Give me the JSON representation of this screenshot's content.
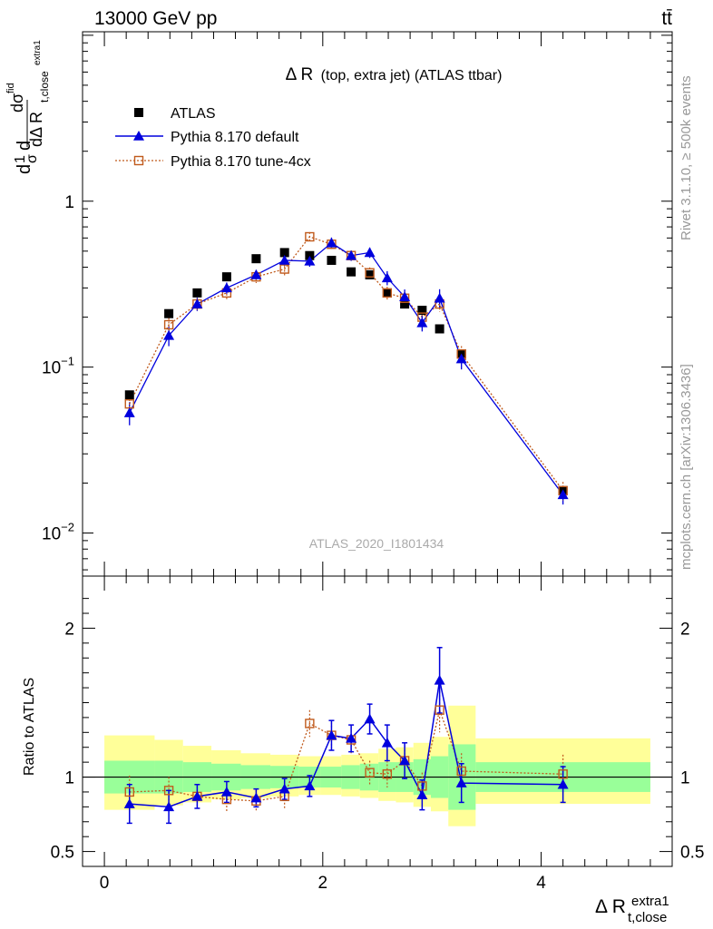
{
  "header": {
    "energy_label": "13000 GeV pp",
    "process_label": "tt̄"
  },
  "side_labels": {
    "rivet": "Rivet 3.1.10, ≥ 500k events",
    "mcplots": "mcplots.cern.ch [arXiv:1306.3436]"
  },
  "colors": {
    "data": "#000000",
    "default": "#0000dd",
    "tune": "#c05a1c",
    "band_inner": "#99ff99",
    "band_outer": "#ffff99"
  },
  "chart_data": [
    {
      "type": "scatter",
      "title_main": "Δ R",
      "title_rest": "(top, extra jet) (ATLAS ttbar)",
      "ylabel": "dσ/dΔ R_{t,close}^{extra1} · 1/σ^{fid}",
      "ylabel_parts": [
        "d",
        "1",
        "σ",
        "d",
        "dσ",
        "fid",
        "dΔ R",
        "t,close",
        "extra1"
      ],
      "yscale": "log",
      "ylim": [
        0.0055,
        10.5
      ],
      "xlim": [
        -0.2,
        5.2
      ],
      "y_ticks": [
        {
          "value": 1,
          "label": "1"
        },
        {
          "value": 0.1,
          "label": "10",
          "exp": "−1"
        },
        {
          "value": 0.01,
          "label": "10",
          "exp": "−2"
        }
      ],
      "watermark": "ATLAS_2020_I1801434",
      "legend_position": "top-left",
      "series": [
        {
          "name": "ATLAS",
          "marker": "filled-square",
          "x": [
            0.23,
            0.59,
            0.85,
            1.12,
            1.39,
            1.65,
            1.88,
            2.08,
            2.26,
            2.43,
            2.59,
            2.75,
            2.91,
            3.07,
            3.27,
            4.2
          ],
          "y": [
            0.068,
            0.21,
            0.28,
            0.35,
            0.45,
            0.49,
            0.47,
            0.44,
            0.375,
            0.36,
            0.28,
            0.24,
            0.22,
            0.17,
            0.12,
            0.018
          ]
        },
        {
          "name": "Pythia 8.170 default",
          "marker": "filled-triangle",
          "x": [
            0.23,
            0.59,
            0.85,
            1.12,
            1.39,
            1.65,
            1.88,
            2.08,
            2.26,
            2.43,
            2.59,
            2.75,
            2.91,
            3.07,
            3.27,
            4.2
          ],
          "y": [
            0.053,
            0.155,
            0.24,
            0.3,
            0.36,
            0.44,
            0.435,
            0.56,
            0.47,
            0.49,
            0.345,
            0.265,
            0.185,
            0.26,
            0.112,
            0.017
          ]
        },
        {
          "name": "Pythia 8.170 tune-4cx",
          "marker": "open-square",
          "x": [
            0.23,
            0.59,
            0.85,
            1.12,
            1.39,
            1.65,
            1.88,
            2.08,
            2.26,
            2.43,
            2.59,
            2.75,
            2.91,
            3.07,
            3.27,
            4.2
          ],
          "y": [
            0.06,
            0.18,
            0.24,
            0.28,
            0.35,
            0.39,
            0.61,
            0.55,
            0.47,
            0.37,
            0.28,
            0.26,
            0.2,
            0.24,
            0.12,
            0.018
          ]
        }
      ]
    },
    {
      "type": "scatter",
      "ylabel": "Ratio to ATLAS",
      "xlabel": "Δ R",
      "xlabel_sub": "t,close",
      "xlabel_sup": "extra1",
      "ylim": [
        0.4,
        2.35
      ],
      "xlim": [
        -0.2,
        5.2
      ],
      "x_ticks": [
        0,
        2,
        4
      ],
      "y_ticks": [
        0.5,
        1,
        2
      ],
      "reference_line": 1,
      "bands": {
        "edges": [
          0.0,
          0.46,
          0.72,
          0.98,
          1.25,
          1.52,
          1.78,
          1.98,
          2.17,
          2.34,
          2.51,
          2.67,
          2.83,
          2.99,
          3.15,
          3.4,
          5.0
        ],
        "inner_low": [
          0.89,
          0.89,
          0.9,
          0.91,
          0.92,
          0.925,
          0.93,
          0.93,
          0.92,
          0.91,
          0.9,
          0.9,
          0.88,
          0.86,
          0.78,
          0.9
        ],
        "inner_high": [
          1.11,
          1.11,
          1.1,
          1.09,
          1.08,
          1.075,
          1.07,
          1.07,
          1.08,
          1.09,
          1.1,
          1.1,
          1.12,
          1.14,
          1.22,
          1.1
        ],
        "outer_low": [
          0.78,
          0.81,
          0.83,
          0.85,
          0.86,
          0.87,
          0.88,
          0.88,
          0.87,
          0.86,
          0.84,
          0.83,
          0.8,
          0.77,
          0.67,
          0.82
        ],
        "outer_high": [
          1.28,
          1.25,
          1.21,
          1.18,
          1.16,
          1.15,
          1.14,
          1.14,
          1.15,
          1.16,
          1.19,
          1.2,
          1.23,
          1.27,
          1.48,
          1.26
        ]
      },
      "series": [
        {
          "name": "Pythia 8.170 default",
          "x": [
            0.23,
            0.59,
            0.85,
            1.12,
            1.39,
            1.65,
            1.88,
            2.08,
            2.26,
            2.43,
            2.59,
            2.75,
            2.91,
            3.07,
            3.27,
            4.2
          ],
          "y": [
            0.82,
            0.8,
            0.87,
            0.9,
            0.86,
            0.92,
            0.94,
            1.28,
            1.26,
            1.39,
            1.23,
            1.11,
            0.88,
            1.65,
            0.96,
            0.95
          ],
          "err": [
            0.13,
            0.11,
            0.08,
            0.07,
            0.06,
            0.07,
            0.07,
            0.1,
            0.09,
            0.1,
            0.12,
            0.12,
            0.1,
            0.22,
            0.13,
            0.12
          ]
        },
        {
          "name": "Pythia 8.170 tune-4cx",
          "x": [
            0.23,
            0.59,
            0.85,
            1.12,
            1.39,
            1.65,
            1.88,
            2.08,
            2.26,
            2.43,
            2.59,
            2.75,
            2.91,
            3.07,
            3.27,
            4.2
          ],
          "y": [
            0.9,
            0.91,
            0.87,
            0.85,
            0.84,
            0.87,
            1.36,
            1.28,
            1.25,
            1.03,
            1.02,
            1.11,
            0.94,
            1.45,
            1.04,
            1.02
          ],
          "err": [
            0.11,
            0.09,
            0.07,
            0.08,
            0.07,
            0.08,
            0.09,
            0.09,
            0.09,
            0.08,
            0.09,
            0.1,
            0.09,
            0.15,
            0.12,
            0.13
          ]
        }
      ]
    }
  ]
}
